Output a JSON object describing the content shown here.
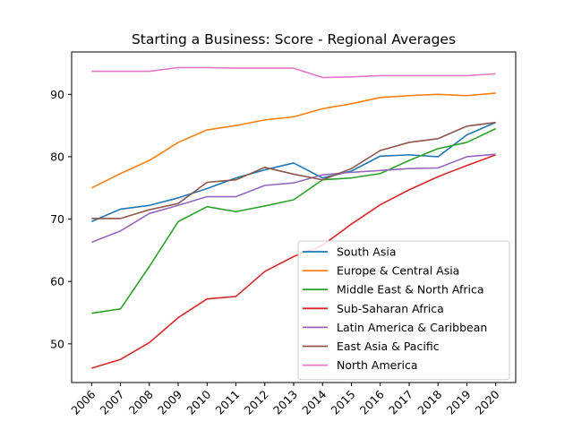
{
  "chart_data": {
    "type": "line",
    "title": "Starting a Business: Score - Regional Averages",
    "xlabel": "",
    "ylabel": "",
    "x": [
      "2006",
      "2007",
      "2008",
      "2009",
      "2010",
      "2011",
      "2012",
      "2013",
      "2014",
      "2015",
      "2016",
      "2017",
      "2018",
      "2019",
      "2020"
    ],
    "ylim": [
      43.8,
      96.8
    ],
    "yticks": [
      50,
      60,
      70,
      80,
      90
    ],
    "grid": false,
    "legend_position": "lower-right",
    "series": [
      {
        "name": "South Asia",
        "color": "#1f77b4",
        "values": [
          69.6,
          71.6,
          72.2,
          73.4,
          74.9,
          76.6,
          77.9,
          79.0,
          76.6,
          77.7,
          80.1,
          80.3,
          80.0,
          83.5,
          85.5
        ]
      },
      {
        "name": "Europe & Central Asia",
        "color": "#ff7f0e",
        "values": [
          75.0,
          77.3,
          79.4,
          82.3,
          84.3,
          85.0,
          85.9,
          86.4,
          87.7,
          88.5,
          89.5,
          89.8,
          90.0,
          89.8,
          90.2
        ]
      },
      {
        "name": "Middle East & North Africa",
        "color": "#2ca02c",
        "values": [
          54.9,
          55.6,
          62.4,
          69.6,
          72.0,
          71.2,
          72.1,
          73.1,
          76.3,
          76.6,
          77.3,
          79.4,
          81.3,
          82.3,
          84.5
        ]
      },
      {
        "name": "Sub-Saharan Africa",
        "color": "#d62728",
        "values": [
          46.1,
          47.5,
          50.2,
          54.2,
          57.2,
          57.6,
          61.6,
          64.0,
          65.8,
          69.2,
          72.3,
          74.7,
          76.8,
          78.6,
          80.3
        ]
      },
      {
        "name": "Latin America & Caribbean",
        "color": "#9467bd",
        "values": [
          66.3,
          68.1,
          70.9,
          72.2,
          73.6,
          73.6,
          75.4,
          75.8,
          77.1,
          77.5,
          77.8,
          78.1,
          78.2,
          80.0,
          80.4
        ]
      },
      {
        "name": "East Asia & Pacific",
        "color": "#8c564b",
        "values": [
          70.1,
          70.1,
          71.5,
          72.5,
          75.9,
          76.3,
          78.3,
          77.2,
          76.3,
          78.1,
          81.0,
          82.3,
          82.9,
          84.9,
          85.5
        ]
      },
      {
        "name": "North America",
        "color": "#e377c2",
        "values": [
          93.7,
          93.7,
          93.7,
          94.3,
          94.3,
          94.2,
          94.2,
          94.2,
          92.7,
          92.8,
          93.0,
          93.0,
          93.0,
          93.0,
          93.3
        ]
      }
    ]
  }
}
